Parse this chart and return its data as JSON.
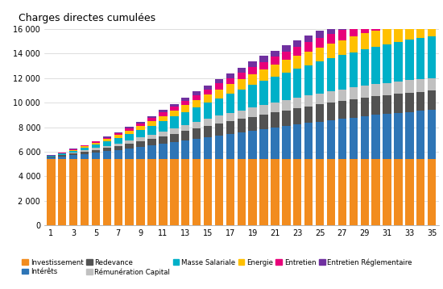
{
  "title": "Charges directes cumulées",
  "years": [
    1,
    2,
    3,
    4,
    5,
    6,
    7,
    8,
    9,
    10,
    11,
    12,
    13,
    14,
    15,
    16,
    17,
    18,
    19,
    20,
    21,
    22,
    23,
    24,
    25,
    26,
    27,
    28,
    29,
    30,
    31,
    32,
    33,
    34,
    35
  ],
  "xtick_labels": [
    "1",
    "3",
    "5",
    "7",
    "9",
    "11",
    "13",
    "15",
    "17",
    "19",
    "21",
    "23",
    "25",
    "27",
    "29",
    "31",
    "33",
    "35"
  ],
  "xtick_positions": [
    1,
    3,
    5,
    7,
    9,
    11,
    13,
    15,
    17,
    19,
    21,
    23,
    25,
    27,
    29,
    31,
    33,
    35
  ],
  "ylim": [
    0,
    16000
  ],
  "yticks": [
    0,
    2000,
    4000,
    6000,
    8000,
    10000,
    12000,
    14000,
    16000
  ],
  "ytick_labels": [
    "0",
    "2 000",
    "4 000",
    "6 000",
    "8 000",
    "10 000",
    "12 000",
    "14 000",
    "16 000"
  ],
  "series_order": [
    "Investissement",
    "Intérêts",
    "Redevance",
    "Rémunération Capital",
    "Masse Salariale",
    "Energie",
    "Entretien",
    "Entretien Réglementaire"
  ],
  "series": {
    "Investissement": {
      "color": "#F28C1E",
      "values": [
        5400,
        5400,
        5400,
        5400,
        5400,
        5400,
        5400,
        5400,
        5400,
        5400,
        5400,
        5400,
        5400,
        5400,
        5400,
        5400,
        5400,
        5400,
        5400,
        5400,
        5400,
        5400,
        5400,
        5400,
        5400,
        5400,
        5400,
        5400,
        5400,
        5400,
        5400,
        5400,
        5400,
        5400,
        5400
      ]
    },
    "Intérêts": {
      "color": "#2E75B6",
      "values": [
        150,
        230,
        330,
        430,
        540,
        640,
        750,
        870,
        1000,
        1130,
        1260,
        1400,
        1540,
        1670,
        1800,
        1940,
        2070,
        2200,
        2330,
        2460,
        2590,
        2710,
        2830,
        2950,
        3060,
        3170,
        3280,
        3390,
        3490,
        3590,
        3680,
        3770,
        3850,
        3920,
        3990
      ]
    },
    "Redevance": {
      "color": "#525252",
      "values": [
        40,
        80,
        125,
        170,
        215,
        265,
        320,
        380,
        450,
        520,
        590,
        665,
        740,
        810,
        880,
        945,
        1005,
        1065,
        1120,
        1175,
        1225,
        1270,
        1310,
        1350,
        1385,
        1415,
        1445,
        1470,
        1495,
        1515,
        1530,
        1545,
        1555,
        1565,
        1572
      ]
    },
    "Rémunération Capital": {
      "color": "#C0C0C0",
      "values": [
        20,
        45,
        75,
        105,
        140,
        175,
        215,
        255,
        300,
        350,
        400,
        450,
        500,
        548,
        595,
        638,
        678,
        715,
        750,
        782,
        812,
        840,
        865,
        890,
        912,
        932,
        950,
        967,
        982,
        995,
        1006,
        1016,
        1024,
        1031,
        1037
      ]
    },
    "Masse Salariale": {
      "color": "#00B0C8",
      "values": [
        40,
        85,
        140,
        200,
        270,
        345,
        425,
        515,
        615,
        720,
        830,
        945,
        1065,
        1185,
        1310,
        1435,
        1565,
        1695,
        1825,
        1955,
        2085,
        2210,
        2335,
        2455,
        2570,
        2680,
        2785,
        2885,
        2975,
        3060,
        3140,
        3210,
        3275,
        3330,
        3380
      ]
    },
    "Energie": {
      "color": "#FFC000",
      "values": [
        30,
        58,
        90,
        125,
        162,
        200,
        242,
        288,
        335,
        385,
        438,
        492,
        548,
        605,
        662,
        718,
        773,
        827,
        880,
        930,
        980,
        1027,
        1073,
        1116,
        1157,
        1196,
        1232,
        1266,
        1298,
        1328,
        1356,
        1381,
        1404,
        1425,
        1444
      ]
    },
    "Entretien": {
      "color": "#E8007A",
      "values": [
        15,
        32,
        52,
        74,
        96,
        120,
        148,
        178,
        210,
        245,
        282,
        320,
        360,
        400,
        440,
        478,
        515,
        552,
        588,
        622,
        655,
        687,
        717,
        746,
        773,
        799,
        823,
        846,
        866,
        885,
        902,
        918,
        933,
        946,
        957
      ]
    },
    "Entretien Réglementaire": {
      "color": "#7030A0",
      "values": [
        8,
        18,
        30,
        43,
        58,
        75,
        95,
        116,
        140,
        165,
        193,
        222,
        253,
        284,
        316,
        347,
        378,
        409,
        438,
        466,
        493,
        519,
        543,
        566,
        588,
        608,
        627,
        645,
        661,
        676,
        690,
        702,
        713,
        723,
        732
      ]
    }
  },
  "legend_row1": [
    {
      "label": "Investissement",
      "color": "#F28C1E"
    },
    {
      "label": "Intérêts",
      "color": "#2E75B6"
    },
    {
      "label": "Redevance",
      "color": "#525252"
    },
    {
      "label": "Rémunération Capital",
      "color": "#C0C0C0"
    },
    {
      "label": "Masse Salariale",
      "color": "#00B0C8"
    },
    {
      "label": "Energie",
      "color": "#FFC000"
    }
  ],
  "legend_row2": [
    {
      "label": "Entretien",
      "color": "#E8007A"
    },
    {
      "label": "Entretien Réglementaire",
      "color": "#7030A0"
    }
  ]
}
